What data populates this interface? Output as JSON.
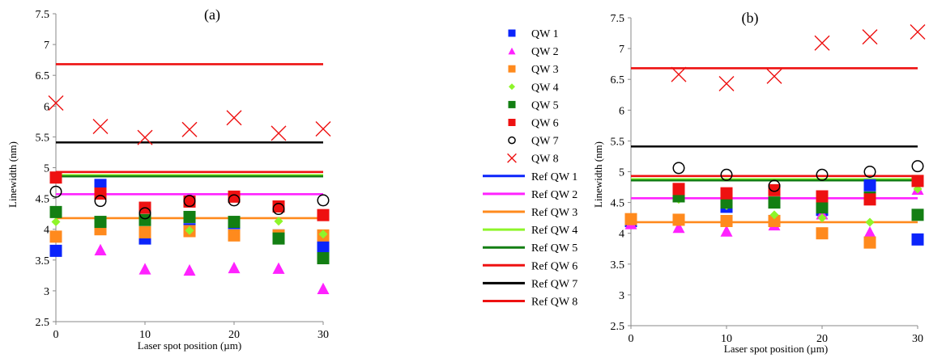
{
  "chart_data": [
    {
      "type": "scatter",
      "title": "(a)",
      "xlabel": "Laser spot position (µm)",
      "ylabel": "Linewidth (nm)",
      "xlim": [
        0,
        30
      ],
      "ylim": [
        2.5,
        7.5
      ],
      "xticks": [
        0,
        10,
        20,
        30
      ],
      "yticks": [
        2.5,
        3,
        3.5,
        4,
        4.5,
        5,
        5.5,
        6,
        6.5,
        7,
        7.5
      ],
      "ytick_labels": [
        "2.5",
        "3",
        "3.5",
        "4",
        "4.5",
        "5",
        "5.5",
        "6",
        "6.5",
        "7",
        "7.5"
      ],
      "grid": false,
      "x": [
        0,
        5,
        10,
        15,
        20,
        25,
        30
      ],
      "series": [
        {
          "name": "QW 1",
          "values": [
            3.65,
            4.72,
            3.85,
            4.0,
            4.1,
            3.9,
            3.72
          ]
        },
        {
          "name": "QW 2",
          "values": [
            null,
            3.67,
            3.36,
            3.34,
            3.38,
            3.37,
            3.04
          ]
        },
        {
          "name": "QW 3",
          "values": [
            3.88,
            4.0,
            3.95,
            3.97,
            3.9,
            3.9,
            3.9
          ]
        },
        {
          "name": "QW 4",
          "values": [
            4.12,
            4.12,
            4.15,
            3.98,
            4.12,
            4.13,
            3.92
          ]
        },
        {
          "name": "QW 5",
          "values": [
            4.28,
            4.12,
            4.15,
            4.2,
            4.12,
            3.85,
            3.53
          ]
        },
        {
          "name": "QW 6",
          "values": [
            4.84,
            4.58,
            4.35,
            4.45,
            4.53,
            4.37,
            4.23
          ]
        },
        {
          "name": "QW 7",
          "values": [
            4.61,
            4.46,
            4.26,
            4.46,
            4.47,
            4.33,
            4.47
          ]
        },
        {
          "name": "QW 8",
          "values": [
            6.05,
            5.67,
            5.49,
            5.62,
            5.81,
            5.56,
            5.63
          ]
        }
      ],
      "reference_lines": [
        {
          "name": "Ref QW 1",
          "value": 4.87
        },
        {
          "name": "Ref QW 2",
          "value": 4.57
        },
        {
          "name": "Ref QW 3",
          "value": 4.18
        },
        {
          "name": "Ref QW 4",
          "value": 4.88
        },
        {
          "name": "Ref QW 5",
          "value": 4.86
        },
        {
          "name": "Ref QW 6",
          "value": 4.93
        },
        {
          "name": "Ref QW 7",
          "value": 5.41
        },
        {
          "name": "Ref QW 8",
          "value": 6.68
        }
      ]
    },
    {
      "type": "scatter",
      "title": "(b)",
      "xlabel": "Laser spot position (µm)",
      "ylabel": "Linewidth (nm)",
      "xlim": [
        0,
        30
      ],
      "ylim": [
        2.5,
        7.5
      ],
      "xticks": [
        0,
        10,
        20,
        30
      ],
      "yticks": [
        2.5,
        3,
        3.5,
        4,
        4.5,
        5,
        5.5,
        6,
        6.5,
        7,
        7.5
      ],
      "ytick_labels": [
        "2.5",
        "3",
        "3.5",
        "4",
        "4.5",
        "5",
        "5.5",
        "6",
        "6.5",
        "7",
        "7.5"
      ],
      "grid": false,
      "x": [
        0,
        5,
        10,
        15,
        20,
        25,
        30
      ],
      "series": [
        {
          "name": "QW 1",
          "values": [
            4.2,
            4.62,
            4.43,
            4.2,
            4.38,
            4.78,
            3.9
          ]
        },
        {
          "name": "QW 2",
          "values": [
            4.16,
            4.1,
            4.04,
            4.14,
            4.32,
            4.02,
            4.72
          ]
        },
        {
          "name": "QW 3",
          "values": [
            4.23,
            4.22,
            4.2,
            4.2,
            4.0,
            3.85,
            4.85
          ]
        },
        {
          "name": "QW 4",
          "values": [
            null,
            4.55,
            4.45,
            4.3,
            4.25,
            4.18,
            4.72
          ]
        },
        {
          "name": "QW 5",
          "values": [
            null,
            4.6,
            4.5,
            4.5,
            4.42,
            4.58,
            4.3
          ]
        },
        {
          "name": "QW 6",
          "values": [
            null,
            4.72,
            4.65,
            4.7,
            4.6,
            4.55,
            4.85
          ]
        },
        {
          "name": "QW 7",
          "values": [
            null,
            5.06,
            4.95,
            4.77,
            4.95,
            5.0,
            5.09
          ]
        },
        {
          "name": "QW 8",
          "values": [
            null,
            6.58,
            6.43,
            6.55,
            7.09,
            7.19,
            7.27
          ]
        }
      ],
      "reference_lines": [
        {
          "name": "Ref QW 1",
          "value": 4.87
        },
        {
          "name": "Ref QW 2",
          "value": 4.57
        },
        {
          "name": "Ref QW 3",
          "value": 4.18
        },
        {
          "name": "Ref QW 4",
          "value": 4.88
        },
        {
          "name": "Ref QW 5",
          "value": 4.86
        },
        {
          "name": "Ref QW 6",
          "value": 4.93
        },
        {
          "name": "Ref QW 7",
          "value": 5.41
        },
        {
          "name": "Ref QW 8",
          "value": 6.68
        }
      ]
    }
  ],
  "legend": {
    "placement": "center, between panels",
    "items": [
      {
        "label": "QW 1",
        "marker": "square",
        "color": "#0b24fb"
      },
      {
        "label": "QW 2",
        "marker": "triangle",
        "color": "#ff22ff"
      },
      {
        "label": "QW 3",
        "marker": "square",
        "color": "#ff8a1d"
      },
      {
        "label": "QW 4",
        "marker": "diamond",
        "color": "#8ef52a"
      },
      {
        "label": "QW 5",
        "marker": "square",
        "color": "#137f13"
      },
      {
        "label": "QW 6",
        "marker": "square",
        "color": "#ee1111"
      },
      {
        "label": "QW 7",
        "marker": "circle",
        "color": "#000000"
      },
      {
        "label": "QW 8",
        "marker": "x",
        "color": "#ee1111"
      },
      {
        "label": "Ref QW 1",
        "marker": "line",
        "color": "#0b24fb"
      },
      {
        "label": "Ref QW 2",
        "marker": "line",
        "color": "#ff22ff"
      },
      {
        "label": "Ref QW 3",
        "marker": "line",
        "color": "#ff8a1d"
      },
      {
        "label": "Ref QW 4",
        "marker": "line",
        "color": "#8ef52a"
      },
      {
        "label": "Ref QW 5",
        "marker": "line",
        "color": "#137f13"
      },
      {
        "label": "Ref QW 6",
        "marker": "line",
        "color": "#ee1111"
      },
      {
        "label": "Ref QW 7",
        "marker": "line",
        "color": "#000000"
      },
      {
        "label": "Ref QW 8",
        "marker": "line",
        "color": "#ee1111"
      }
    ]
  }
}
